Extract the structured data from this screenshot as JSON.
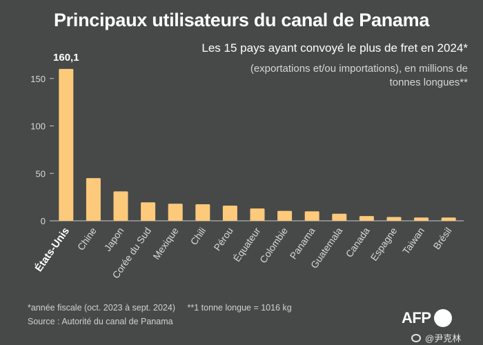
{
  "title": "Principaux utilisateurs du canal de Panama",
  "subtitle": "Les 15 pays ayant convoyé le plus de fret en 2024*",
  "subtitle_units": "(exportations et/ou importations), en millions de tonnes longues**",
  "footnote_fiscal": "*année fiscale (oct. 2023 à sept. 2024)",
  "footnote_unit": "**1 tonne longue = 1016 kg",
  "source": "Source : Autorité du canal de Panama",
  "logo_text": "AFP",
  "watermark": "@尹克林",
  "colors": {
    "background": "#474948",
    "bar": "#fdc97b",
    "axis": "#c8c8c8",
    "text": "#ffffff"
  },
  "chart_data": {
    "type": "bar",
    "categories": [
      "États-Unis",
      "Chine",
      "Japon",
      "Corée du Sud",
      "Mexique",
      "Chili",
      "Pérou",
      "Équateur",
      "Colombie",
      "Panama",
      "Guatemala",
      "Canada",
      "Espagne",
      "Taiwan",
      "Brésil"
    ],
    "values": [
      160.1,
      45,
      31,
      19.5,
      18,
      17.5,
      16,
      13,
      10.5,
      10,
      7.5,
      5,
      4,
      3.5,
      3.5
    ],
    "data_labels": {
      "0": "160,1"
    },
    "yticks": [
      0,
      50,
      100,
      150
    ],
    "ylim": [
      0,
      160
    ],
    "xlabel": "",
    "ylabel": "",
    "grid": false,
    "highlight_index": 0
  }
}
